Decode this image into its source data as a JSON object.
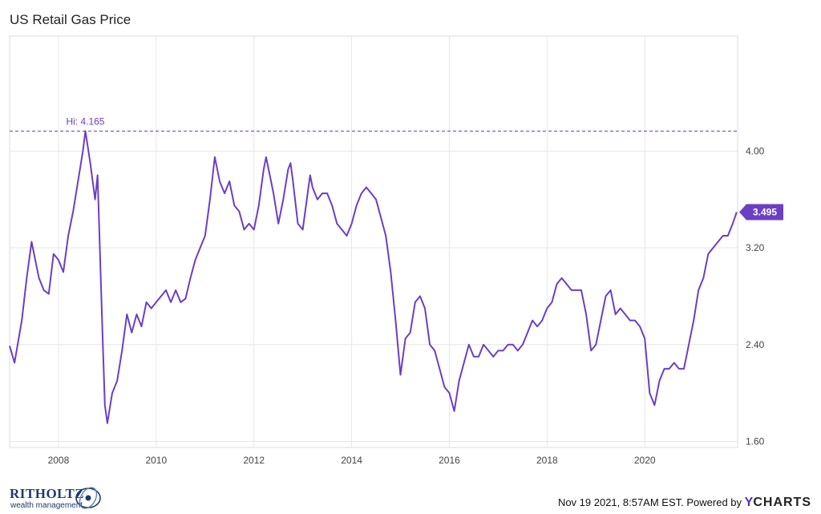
{
  "chart_data": {
    "type": "line",
    "title": "US Retail Gas Price",
    "xlabel": "",
    "ylabel": "",
    "x_ticks": [
      "2008",
      "2010",
      "2012",
      "2014",
      "2016",
      "2018",
      "2020"
    ],
    "y_ticks": [
      "1.60",
      "2.40",
      "3.20",
      "4.00"
    ],
    "xlim": [
      2007.0,
      2021.9
    ],
    "ylim": [
      1.55,
      4.95
    ],
    "grid": true,
    "axis_position": "right",
    "series": [
      {
        "color": "#6b3fc4",
        "x": [
          2007.0,
          2007.1,
          2007.25,
          2007.35,
          2007.45,
          2007.55,
          2007.6,
          2007.7,
          2007.8,
          2007.9,
          2008.0,
          2008.1,
          2008.2,
          2008.3,
          2008.4,
          2008.5,
          2008.55,
          2008.65,
          2008.75,
          2008.8,
          2008.9,
          2008.95,
          2009.0,
          2009.1,
          2009.2,
          2009.3,
          2009.4,
          2009.5,
          2009.6,
          2009.7,
          2009.8,
          2009.9,
          2010.0,
          2010.1,
          2010.2,
          2010.3,
          2010.4,
          2010.5,
          2010.6,
          2010.7,
          2010.8,
          2010.9,
          2011.0,
          2011.1,
          2011.2,
          2011.3,
          2011.4,
          2011.5,
          2011.6,
          2011.7,
          2011.8,
          2011.9,
          2012.0,
          2012.1,
          2012.2,
          2012.25,
          2012.3,
          2012.4,
          2012.5,
          2012.6,
          2012.7,
          2012.75,
          2012.8,
          2012.9,
          2013.0,
          2013.1,
          2013.15,
          2013.2,
          2013.3,
          2013.4,
          2013.5,
          2013.6,
          2013.7,
          2013.8,
          2013.9,
          2014.0,
          2014.1,
          2014.2,
          2014.3,
          2014.4,
          2014.5,
          2014.6,
          2014.7,
          2014.8,
          2014.9,
          2015.0,
          2015.1,
          2015.2,
          2015.3,
          2015.4,
          2015.5,
          2015.6,
          2015.7,
          2015.8,
          2015.9,
          2016.0,
          2016.1,
          2016.2,
          2016.3,
          2016.4,
          2016.5,
          2016.6,
          2016.7,
          2016.8,
          2016.9,
          2017.0,
          2017.1,
          2017.2,
          2017.3,
          2017.4,
          2017.5,
          2017.6,
          2017.7,
          2017.8,
          2017.9,
          2018.0,
          2018.1,
          2018.2,
          2018.3,
          2018.4,
          2018.5,
          2018.6,
          2018.7,
          2018.8,
          2018.9,
          2019.0,
          2019.1,
          2019.2,
          2019.3,
          2019.4,
          2019.5,
          2019.6,
          2019.7,
          2019.8,
          2019.9,
          2020.0,
          2020.1,
          2020.2,
          2020.3,
          2020.4,
          2020.5,
          2020.6,
          2020.7,
          2020.8,
          2020.9,
          2021.0,
          2021.1,
          2021.2,
          2021.3,
          2021.4,
          2021.5,
          2021.6,
          2021.7,
          2021.8,
          2021.88
        ],
        "values": [
          2.39,
          2.25,
          2.6,
          2.95,
          3.25,
          3.05,
          2.95,
          2.85,
          2.82,
          3.15,
          3.1,
          3.0,
          3.3,
          3.5,
          3.75,
          4.0,
          4.165,
          3.9,
          3.6,
          3.8,
          2.5,
          1.9,
          1.75,
          2.0,
          2.1,
          2.35,
          2.65,
          2.5,
          2.65,
          2.55,
          2.75,
          2.7,
          2.75,
          2.8,
          2.85,
          2.75,
          2.85,
          2.75,
          2.78,
          2.95,
          3.1,
          3.2,
          3.3,
          3.6,
          3.95,
          3.75,
          3.65,
          3.75,
          3.55,
          3.5,
          3.35,
          3.4,
          3.35,
          3.55,
          3.85,
          3.95,
          3.85,
          3.65,
          3.4,
          3.6,
          3.85,
          3.9,
          3.75,
          3.4,
          3.35,
          3.65,
          3.8,
          3.7,
          3.6,
          3.65,
          3.65,
          3.55,
          3.4,
          3.35,
          3.3,
          3.4,
          3.55,
          3.65,
          3.7,
          3.65,
          3.6,
          3.45,
          3.3,
          3.0,
          2.6,
          2.15,
          2.45,
          2.5,
          2.75,
          2.8,
          2.7,
          2.4,
          2.35,
          2.2,
          2.05,
          2.0,
          1.85,
          2.1,
          2.25,
          2.4,
          2.3,
          2.3,
          2.4,
          2.35,
          2.3,
          2.35,
          2.35,
          2.4,
          2.4,
          2.35,
          2.4,
          2.5,
          2.6,
          2.55,
          2.6,
          2.7,
          2.75,
          2.9,
          2.95,
          2.9,
          2.85,
          2.85,
          2.85,
          2.65,
          2.35,
          2.4,
          2.6,
          2.8,
          2.85,
          2.65,
          2.7,
          2.65,
          2.6,
          2.6,
          2.55,
          2.45,
          2.0,
          1.9,
          2.1,
          2.2,
          2.2,
          2.25,
          2.2,
          2.2,
          2.4,
          2.6,
          2.85,
          2.95,
          3.15,
          3.2,
          3.25,
          3.3,
          3.3,
          3.4,
          3.495
        ]
      }
    ],
    "annotations": {
      "high_label": "Hi: 4.165",
      "high_value": 4.165,
      "high_x": 2008.55,
      "last_label": "3.495",
      "last_value": 3.495
    }
  },
  "footer": {
    "brand_name": "RITHOLTZ",
    "brand_sub": "wealth management",
    "timestamp": "Nov 19 2021, 8:57AM EST.",
    "powered_by": "Powered by",
    "provider_y": "Y",
    "provider_rest": "CHARTS"
  },
  "colors": {
    "line": "#6b3fc4",
    "grid": "#e6e6e6",
    "brand": "#1f3a6b"
  }
}
